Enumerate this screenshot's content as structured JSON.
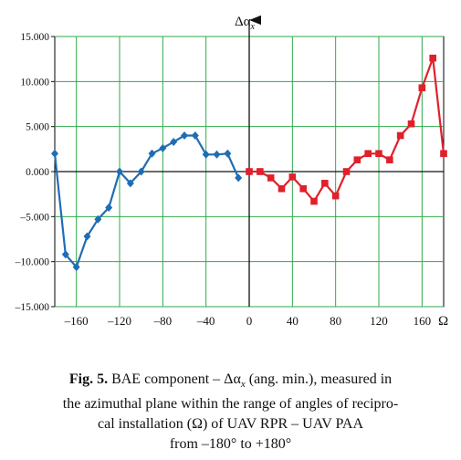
{
  "chart_data": {
    "type": "line",
    "y_axis_label": "Δα",
    "y_axis_label_subscript": "x",
    "x_axis_label": "Ω",
    "xlim": [
      -180,
      180
    ],
    "ylim": [
      -15000,
      15000
    ],
    "grid": true,
    "x_ticks": [
      -160,
      -120,
      -80,
      -40,
      0,
      40,
      80,
      120,
      160
    ],
    "x_tick_labels": [
      "–160",
      "–120",
      "–80",
      "–40",
      "0",
      "40",
      "80",
      "120",
      "160"
    ],
    "y_ticks": [
      15000,
      10000,
      5000,
      0,
      -5000,
      -10000,
      -15000
    ],
    "y_tick_labels": [
      "15.000",
      "10.000",
      "5.000",
      "0.000",
      "–5.000",
      "–10.000",
      "–15.000"
    ],
    "series": [
      {
        "color": "#1f6db3",
        "marker": "diamond",
        "x": [
          -180,
          -170,
          -160,
          -150,
          -140,
          -130,
          -120,
          -110,
          -100,
          -90,
          -80,
          -70,
          -60,
          -50,
          -40,
          -30,
          -20,
          -10
        ],
        "y": [
          2000,
          -9200,
          -10600,
          -7200,
          -5300,
          -4000,
          0,
          -1300,
          0,
          2000,
          2600,
          3300,
          4000,
          4000,
          1900,
          1900,
          2000,
          -700
        ]
      },
      {
        "color": "#e0202a",
        "marker": "square",
        "x": [
          0,
          10,
          20,
          30,
          40,
          50,
          60,
          70,
          80,
          90,
          100,
          110,
          120,
          130,
          140,
          150,
          160,
          170,
          180
        ],
        "y": [
          0,
          0,
          -700,
          -1900,
          -600,
          -1900,
          -3300,
          -1300,
          -2700,
          0,
          1300,
          2000,
          2000,
          1300,
          4000,
          5300,
          9300,
          12600,
          2000
        ]
      }
    ]
  },
  "caption": {
    "label": "Fig. 5.",
    "line1": "BAE component – Δα",
    "line1_sub": "x",
    "line1_rest": " (ang. min.), measured in",
    "line2": "the azimuthal plane within the range of angles of recipro-",
    "line3": "cal installation (Ω) of UAV RPR – UAV PAA",
    "line4": "from –180° to +180°"
  }
}
